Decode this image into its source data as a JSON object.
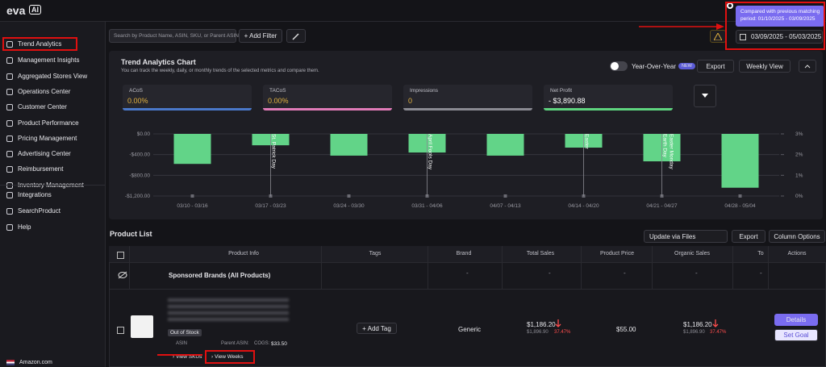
{
  "header": {
    "logo": "eva",
    "logo_badge": "AI",
    "tooltip": "Compared with previous matching period: 01/10/2025 - 03/09/2025",
    "date_range": "03/09/2025 - 05/03/2025"
  },
  "sidebar": {
    "items": [
      "Trend Analytics",
      "Management Insights",
      "Aggregated Stores View",
      "Operations Center",
      "Customer Center",
      "Product Performance",
      "Pricing Management",
      "Advertising Center",
      "Reimbursement",
      "Inventory Management"
    ],
    "extra_items": [
      "Integrations",
      "SearchProduct",
      "Help"
    ],
    "footer": "Amazon.com"
  },
  "toolbar": {
    "search_placeholder": "Search by Product Name, ASIN, SKU, or Parent ASIN",
    "add_filter": "+ Add Filter"
  },
  "chart_panel": {
    "title": "Trend Analytics Chart",
    "subtitle": "You can track the weekly, daily, or monthly trends of the selected metrics and compare them.",
    "yoy": "Year-Over-Year",
    "new_badge": "NEW",
    "export": "Export",
    "weekly_view": "Weekly View",
    "metrics": [
      {
        "name": "ACoS",
        "value": "0.00%",
        "color": "#4a78c9"
      },
      {
        "name": "TACoS",
        "value": "0.00%",
        "color": "#e07bb8"
      },
      {
        "name": "Impressions",
        "value": "0",
        "color": "#8a8a92"
      },
      {
        "name": "Net Profit",
        "value": "- $3,890.88",
        "color": "#5ed47f"
      }
    ],
    "chart": {
      "type": "bar",
      "categories": [
        "03/10 - 03/16",
        "03/17 - 03/23",
        "03/24 - 03/30",
        "03/31 - 04/06",
        "04/07 - 04/13",
        "04/14 - 04/20",
        "04/21 - 04/27",
        "04/28 - 05/04"
      ],
      "values": [
        -580,
        -220,
        -420,
        -360,
        -420,
        -265,
        -530,
        -1040
      ],
      "line_values": [
        0,
        0,
        0,
        0,
        0,
        0,
        0,
        0
      ],
      "color": "#62d488",
      "ylim": [
        -1200,
        0
      ],
      "yticks": [
        {
          "value": 0,
          "label": "$0.00"
        },
        {
          "value": -400,
          "label": "-$400.00"
        },
        {
          "value": -800,
          "label": "-$800.00"
        },
        {
          "value": -1200,
          "label": "-$1,200.00"
        }
      ],
      "y2lim": [
        0,
        3
      ],
      "y2ticks": [
        {
          "value": 3,
          "label": "3%"
        },
        {
          "value": 2,
          "label": "2%"
        },
        {
          "value": 1,
          "label": "1%"
        },
        {
          "value": 0,
          "label": "0%"
        }
      ],
      "events": [
        {
          "index": 1,
          "labels": [
            "St. Patrick Day"
          ]
        },
        {
          "index": 3,
          "labels": [
            "April Fools Day"
          ]
        },
        {
          "index": 5,
          "labels": [
            "Easter"
          ]
        },
        {
          "index": 6,
          "labels": [
            "Earth Day",
            "Easter Monday"
          ]
        }
      ]
    }
  },
  "product_list": {
    "title": "Product List",
    "update_files": "Update via Files",
    "export": "Export",
    "column_options": "Column Options",
    "columns": [
      "Product Info",
      "Tags",
      "Brand",
      "Total Sales",
      "Product Price",
      "Organic Sales",
      "To",
      "Actions"
    ],
    "sponsored": "Sponsored Brands (All Products)",
    "sponsored_cells": [
      "-",
      "-",
      "-",
      "-",
      "-"
    ],
    "row": {
      "status": "Out of Stock",
      "asin_label": "ASIN",
      "parent_asin": "Parent ASIN:",
      "cogs": "COGS:",
      "cogs_value": "$33.50",
      "add_tag": "+ Add Tag",
      "brand": "Generic",
      "total_sales": "$1,186.20",
      "total_prev": "$1,896.90",
      "total_change": "37.47%",
      "price": "$55.00",
      "organic_sales": "$1,186.20",
      "organic_prev": "$1,896.90",
      "organic_change": "37.47%",
      "details": "Details",
      "set_goal": "Set Goal",
      "view_skus": "› View SKUs",
      "view_weeks": "› View Weeks"
    }
  }
}
